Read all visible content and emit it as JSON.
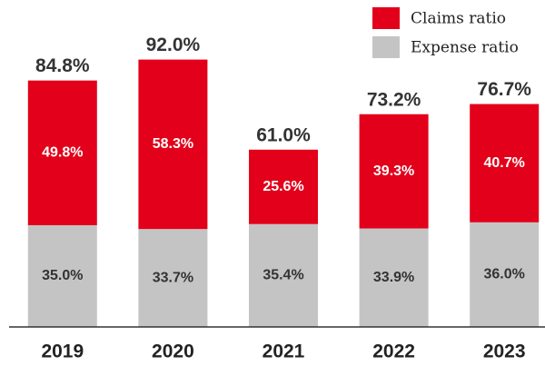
{
  "chart_data": {
    "type": "stacked_bar",
    "categories": [
      "2019",
      "2020",
      "2021",
      "2022",
      "2023"
    ],
    "series": [
      {
        "name": "Claims ratio",
        "color": "#e2001a",
        "values": [
          49.8,
          58.3,
          25.6,
          39.3,
          40.7
        ],
        "value_labels": [
          "49.8%",
          "58.3%",
          "25.6%",
          "39.3%",
          "40.7%"
        ]
      },
      {
        "name": "Expense ratio",
        "color": "#c4c4c4",
        "values": [
          35.0,
          33.7,
          35.4,
          33.9,
          36.0
        ],
        "value_labels": [
          "35.0%",
          "33.7%",
          "35.4%",
          "33.9%",
          "36.0%"
        ]
      }
    ],
    "totals": [
      84.8,
      92.0,
      61.0,
      73.2,
      76.7
    ],
    "total_labels": [
      "84.8%",
      "92.0%",
      "61.0%",
      "73.2%",
      "76.7%"
    ],
    "ylim": [
      0,
      100
    ],
    "legend": "top-right"
  }
}
